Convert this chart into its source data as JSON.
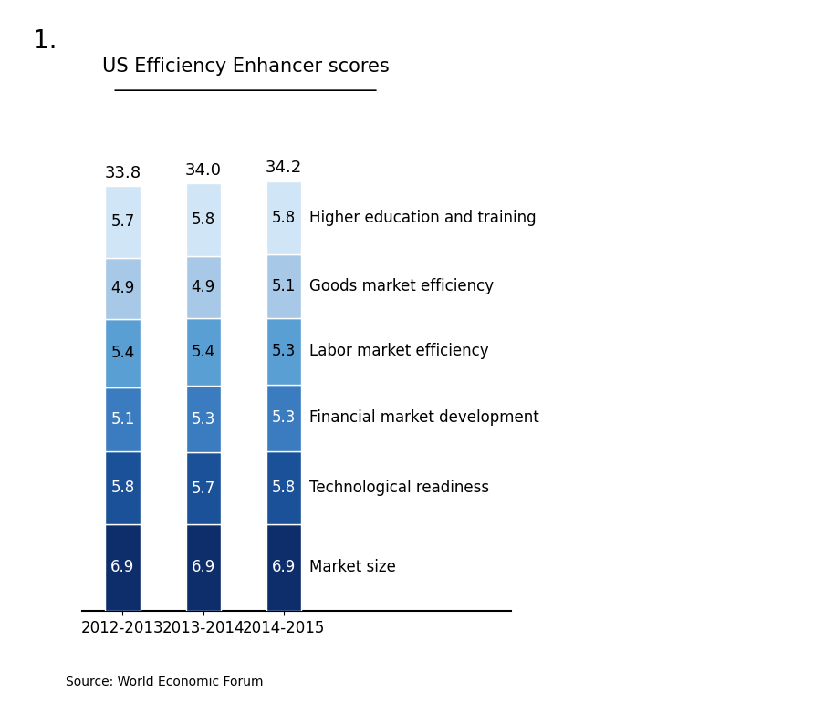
{
  "title": "US Efficiency Enhancer scores",
  "number_label": "1.",
  "source_text": "Source: World Economic Forum",
  "years": [
    "2012-2013",
    "2013-2014",
    "2014-2015"
  ],
  "totals": [
    "33.8",
    "34.0",
    "34.2"
  ],
  "categories": [
    "Market size",
    "Technological readiness",
    "Financial market development",
    "Labor market efficiency",
    "Goods market efficiency",
    "Higher education and training"
  ],
  "values": {
    "2012-2013": [
      6.9,
      5.8,
      5.1,
      5.4,
      4.9,
      5.7
    ],
    "2013-2014": [
      6.9,
      5.7,
      5.3,
      5.4,
      4.9,
      5.8
    ],
    "2014-2015": [
      6.9,
      5.8,
      5.3,
      5.3,
      5.1,
      5.8
    ]
  },
  "colors": [
    "#0d2d6b",
    "#1a5199",
    "#3a7cbf",
    "#5a9fd4",
    "#a8c8e8",
    "#d0e5f5"
  ],
  "bar_width": 0.13,
  "figsize": [
    9.04,
    7.7
  ],
  "dpi": 100,
  "background_color": "#ffffff",
  "title_fontsize": 15,
  "label_fontsize": 12,
  "annotation_fontsize": 12,
  "legend_fontsize": 12,
  "total_fontsize": 13
}
